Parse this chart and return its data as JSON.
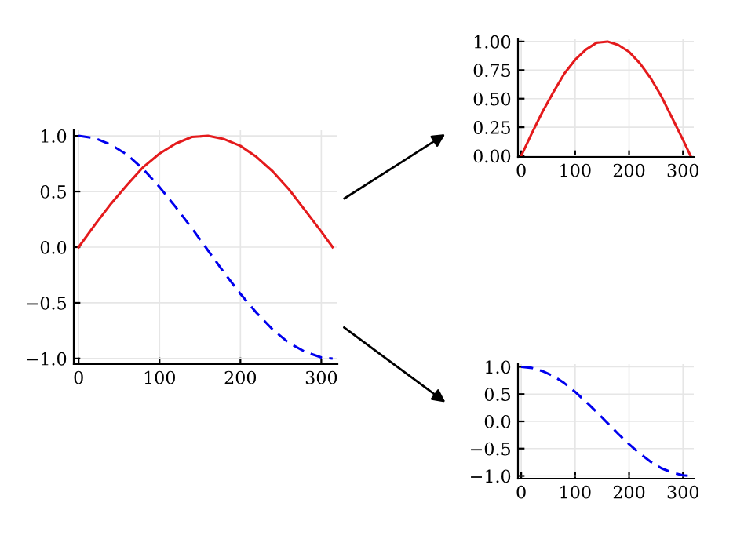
{
  "chart_data": [
    {
      "type": "line",
      "x": [
        0,
        20,
        40,
        60,
        80,
        100,
        120,
        140,
        160,
        180,
        200,
        220,
        240,
        260,
        280,
        300,
        314
      ],
      "xlim": [
        -6,
        320
      ],
      "xticks": [
        0,
        100,
        200,
        300
      ],
      "ylim": [
        -1.05,
        1.05
      ],
      "yticks": [
        {
          "value": -1,
          "label": "−1.0"
        },
        {
          "value": -0.5,
          "label": "−0.5"
        },
        {
          "value": 0,
          "label": "0.0"
        },
        {
          "value": 0.5,
          "label": "0.5"
        },
        {
          "value": 1,
          "label": "1.0"
        }
      ],
      "grid": true,
      "legend": false,
      "series": [
        {
          "color": "#e41a1c",
          "line_style": "solid",
          "values": [
            0,
            0.2,
            0.39,
            0.56,
            0.72,
            0.84,
            0.93,
            0.99,
            1.0,
            0.97,
            0.91,
            0.81,
            0.68,
            0.52,
            0.33,
            0.14,
            0.0
          ]
        },
        {
          "color": "#0000ee",
          "line_style": "dashed",
          "values": [
            1.0,
            0.98,
            0.92,
            0.83,
            0.7,
            0.54,
            0.36,
            0.17,
            -0.03,
            -0.23,
            -0.42,
            -0.59,
            -0.74,
            -0.86,
            -0.94,
            -0.99,
            -1.0
          ]
        }
      ]
    },
    {
      "type": "line",
      "x": [
        0,
        20,
        40,
        60,
        80,
        100,
        120,
        140,
        160,
        180,
        200,
        220,
        240,
        260,
        280,
        300,
        314
      ],
      "xlim": [
        -6,
        320
      ],
      "xticks": [
        0,
        100,
        200,
        300
      ],
      "ylim": [
        -0.01,
        1.02
      ],
      "yticks": [
        {
          "value": 0,
          "label": "0.00"
        },
        {
          "value": 0.25,
          "label": "0.25"
        },
        {
          "value": 0.5,
          "label": "0.50"
        },
        {
          "value": 0.75,
          "label": "0.75"
        },
        {
          "value": 1,
          "label": "1.00"
        }
      ],
      "grid": true,
      "legend": false,
      "series": [
        {
          "color": "#e41a1c",
          "line_style": "solid",
          "values": [
            0,
            0.2,
            0.39,
            0.56,
            0.72,
            0.84,
            0.93,
            0.99,
            1.0,
            0.97,
            0.91,
            0.81,
            0.68,
            0.52,
            0.33,
            0.14,
            0.0
          ]
        }
      ]
    },
    {
      "type": "line",
      "x": [
        0,
        20,
        40,
        60,
        80,
        100,
        120,
        140,
        160,
        180,
        200,
        220,
        240,
        260,
        280,
        300,
        314
      ],
      "xlim": [
        -6,
        320
      ],
      "xticks": [
        0,
        100,
        200,
        300
      ],
      "ylim": [
        -1.05,
        1.05
      ],
      "yticks": [
        {
          "value": -1,
          "label": "−1.0"
        },
        {
          "value": -0.5,
          "label": "−0.5"
        },
        {
          "value": 0,
          "label": "0.0"
        },
        {
          "value": 0.5,
          "label": "0.5"
        },
        {
          "value": 1,
          "label": "1.0"
        }
      ],
      "grid": true,
      "legend": false,
      "series": [
        {
          "color": "#0000ee",
          "line_style": "dashed",
          "values": [
            1.0,
            0.98,
            0.92,
            0.83,
            0.7,
            0.54,
            0.36,
            0.17,
            -0.03,
            -0.23,
            -0.42,
            -0.59,
            -0.74,
            -0.86,
            -0.94,
            -0.99,
            -1.0
          ]
        }
      ]
    }
  ]
}
